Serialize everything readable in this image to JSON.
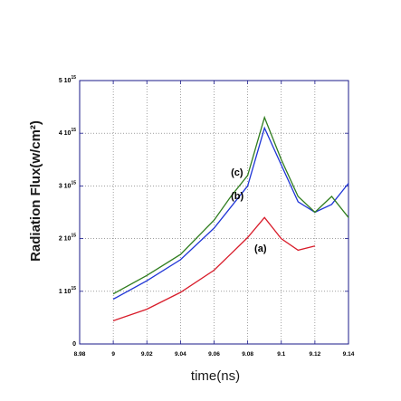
{
  "chart_data": {
    "type": "line",
    "title": "",
    "xlabel": "time(ns)",
    "ylabel": "Radiation Flux(w/cm²)",
    "xlim": [
      8.98,
      9.14
    ],
    "ylim": [
      0,
      5000000000000000.0
    ],
    "x_ticks": [
      8.98,
      9,
      9.02,
      9.04,
      9.06,
      9.08,
      9.1,
      9.12,
      9.14
    ],
    "x_tick_labels": [
      "8.98",
      "9",
      "9.02",
      "9.04",
      "9.06",
      "9.08",
      "9.1",
      "9.12",
      "9.14"
    ],
    "y_ticks": [
      0,
      1000000000000000.0,
      2000000000000000.0,
      3000000000000000.0,
      4000000000000000.0,
      5000000000000000.0
    ],
    "y_tick_labels": [
      {
        "mantissa": "0",
        "exp": ""
      },
      {
        "mantissa": "1 10",
        "exp": "15"
      },
      {
        "mantissa": "2 10",
        "exp": "15"
      },
      {
        "mantissa": "3 10",
        "exp": "15"
      },
      {
        "mantissa": "4 10",
        "exp": "15"
      },
      {
        "mantissa": "5 10",
        "exp": "15"
      }
    ],
    "grid": true,
    "series": [
      {
        "name": "(a)",
        "color": "#d81c2a",
        "x": [
          9,
          9.02,
          9.04,
          9.06,
          9.08,
          9.09,
          9.1,
          9.11,
          9.12
        ],
        "y": [
          440000000000000.0,
          660000000000000.0,
          980000000000000.0,
          1400000000000000.0,
          2020000000000000.0,
          2400000000000000.0,
          2000000000000000.0,
          1780000000000000.0,
          1860000000000000.0
        ]
      },
      {
        "name": "(b)",
        "color": "#1f35d6",
        "x": [
          9,
          9.02,
          9.04,
          9.06,
          9.07,
          9.08,
          9.09,
          9.1,
          9.11,
          9.12,
          9.13,
          9.14
        ],
        "y": [
          850000000000000.0,
          1200000000000000.0,
          1600000000000000.0,
          2200000000000000.0,
          2600000000000000.0,
          3000000000000000.0,
          4100000000000000.0,
          3400000000000000.0,
          2700000000000000.0,
          2500000000000000.0,
          2650000000000000.0,
          3050000000000000.0
        ]
      },
      {
        "name": "(c)",
        "color": "#2f7d1e",
        "x": [
          9,
          9.02,
          9.04,
          9.06,
          9.07,
          9.08,
          9.09,
          9.1,
          9.11,
          9.12,
          9.13,
          9.14
        ],
        "y": [
          950000000000000.0,
          1300000000000000.0,
          1700000000000000.0,
          2350000000000000.0,
          2800000000000000.0,
          3200000000000000.0,
          4300000000000000.0,
          3500000000000000.0,
          2800000000000000.0,
          2500000000000000.0,
          2800000000000000.0,
          2400000000000000.0
        ]
      }
    ],
    "annotations": [
      {
        "text": "(c)",
        "x": 9.07,
        "y": 3200000000000000.0
      },
      {
        "text": "(b)",
        "x": 9.07,
        "y": 2750000000000000.0
      },
      {
        "text": "(a)",
        "x": 9.084,
        "y": 1750000000000000.0
      }
    ]
  }
}
